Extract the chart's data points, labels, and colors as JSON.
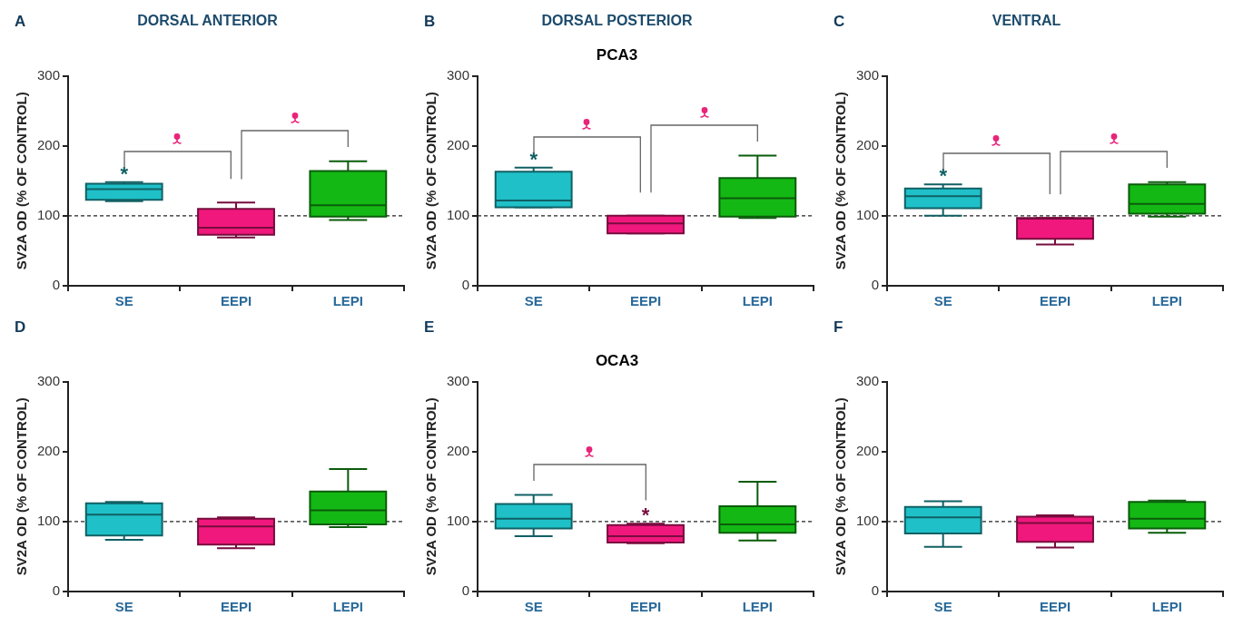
{
  "chart_data": [
    {
      "type": "box",
      "title": "DORSAL ANTERIOR",
      "ylabel": "SV2A OD (% OF CONTROL)",
      "categories": [
        "SE",
        "EEPI",
        "LEPI"
      ],
      "colors": [
        "#1fc0c8",
        "#f0187c",
        "#14b814"
      ],
      "ylim": [
        0,
        300
      ],
      "yticks": [
        0,
        100,
        200,
        300
      ],
      "ref_lines": [
        {
          "axis": "y",
          "value": 100,
          "color": "#222222",
          "line_style": "dashed"
        }
      ],
      "annotations": [
        "A",
        {
          "text": "*",
          "x": "SE",
          "y": 148
        }
      ],
      "boxes": [
        {
          "low": 121,
          "q1": 123,
          "median": 138,
          "q3": 146,
          "high": 148
        },
        {
          "low": 69,
          "q1": 73,
          "median": 83,
          "q3": 110,
          "high": 119
        },
        {
          "low": 94,
          "q1": 99,
          "median": 115,
          "q3": 164,
          "high": 178
        }
      ]
    },
    {
      "type": "box",
      "title": "DORSAL POSTERIOR",
      "subtitle": "PCA3",
      "ylabel": "SV2A OD (% OF CONTROL)",
      "categories": [
        "SE",
        "EEPI",
        "LEPI"
      ],
      "colors": [
        "#1fc0c8",
        "#f0187c",
        "#14b814"
      ],
      "ylim": [
        0,
        300
      ],
      "yticks": [
        0,
        100,
        200,
        300
      ],
      "ref_lines": [
        {
          "axis": "y",
          "value": 100,
          "color": "#222222",
          "line_style": "dashed"
        }
      ],
      "annotations": [
        "B",
        {
          "text": "*",
          "x": "SE",
          "y": 169
        }
      ],
      "boxes": [
        {
          "low": 112,
          "q1": 112,
          "median": 122,
          "q3": 163,
          "high": 169
        },
        {
          "low": 75,
          "q1": 75,
          "median": 89,
          "q3": 100,
          "high": 100
        },
        {
          "low": 97,
          "q1": 99,
          "median": 125,
          "q3": 154,
          "high": 186
        }
      ]
    },
    {
      "type": "box",
      "title": "VENTRAL",
      "ylabel": "SV2A OD (% OF CONTROL)",
      "categories": [
        "SE",
        "EEPI",
        "LEPI"
      ],
      "colors": [
        "#1fc0c8",
        "#f0187c",
        "#14b814"
      ],
      "ylim": [
        0,
        300
      ],
      "yticks": [
        0,
        100,
        200,
        300
      ],
      "ref_lines": [
        {
          "axis": "y",
          "value": 100,
          "color": "#222222",
          "line_style": "dashed"
        }
      ],
      "annotations": [
        "C",
        {
          "text": "*",
          "x": "SE",
          "y": 145
        }
      ],
      "boxes": [
        {
          "low": 100,
          "q1": 111,
          "median": 128,
          "q3": 139,
          "high": 145
        },
        {
          "low": 59,
          "q1": 67,
          "median": 96,
          "q3": 97,
          "high": 97
        },
        {
          "low": 99,
          "q1": 103,
          "median": 117,
          "q3": 145,
          "high": 148
        }
      ]
    },
    {
      "type": "box",
      "ylabel": "SV2A OD (% OF CONTROL)",
      "categories": [
        "SE",
        "EEPI",
        "LEPI"
      ],
      "colors": [
        "#1fc0c8",
        "#f0187c",
        "#14b814"
      ],
      "ylim": [
        0,
        300
      ],
      "yticks": [
        0,
        100,
        200,
        300
      ],
      "ref_lines": [
        {
          "axis": "y",
          "value": 100,
          "color": "#222222",
          "line_style": "dashed"
        }
      ],
      "annotations": [
        "D"
      ],
      "boxes": [
        {
          "low": 74,
          "q1": 80,
          "median": 110,
          "q3": 126,
          "high": 128
        },
        {
          "low": 62,
          "q1": 67,
          "median": 93,
          "q3": 104,
          "high": 106
        },
        {
          "low": 92,
          "q1": 96,
          "median": 116,
          "q3": 143,
          "high": 175
        }
      ]
    },
    {
      "type": "box",
      "subtitle": "OCA3",
      "ylabel": "SV2A OD (% OF CONTROL)",
      "categories": [
        "SE",
        "EEPI",
        "LEPI"
      ],
      "colors": [
        "#1fc0c8",
        "#f0187c",
        "#14b814"
      ],
      "ylim": [
        0,
        300
      ],
      "yticks": [
        0,
        100,
        200,
        300
      ],
      "ref_lines": [
        {
          "axis": "y",
          "value": 100,
          "color": "#222222",
          "line_style": "dashed"
        }
      ],
      "annotations": [
        "E",
        {
          "text": "*",
          "x": "EEPI",
          "y": 97
        }
      ],
      "boxes": [
        {
          "low": 79,
          "q1": 90,
          "median": 104,
          "q3": 125,
          "high": 138
        },
        {
          "low": 69,
          "q1": 70,
          "median": 79,
          "q3": 95,
          "high": 97
        },
        {
          "low": 73,
          "q1": 84,
          "median": 96,
          "q3": 122,
          "high": 157
        }
      ]
    },
    {
      "type": "box",
      "ylabel": "SV2A OD (% OF CONTROL)",
      "categories": [
        "SE",
        "EEPI",
        "LEPI"
      ],
      "colors": [
        "#1fc0c8",
        "#f0187c",
        "#14b814"
      ],
      "ylim": [
        0,
        300
      ],
      "yticks": [
        0,
        100,
        200,
        300
      ],
      "ref_lines": [
        {
          "axis": "y",
          "value": 100,
          "color": "#222222",
          "line_style": "dashed"
        }
      ],
      "annotations": [
        "F"
      ],
      "boxes": [
        {
          "low": 64,
          "q1": 83,
          "median": 106,
          "q3": 121,
          "high": 129
        },
        {
          "low": 63,
          "q1": 71,
          "median": 98,
          "q3": 107,
          "high": 109
        },
        {
          "low": 84,
          "q1": 90,
          "median": 104,
          "q3": 128,
          "high": 130
        }
      ]
    }
  ]
}
